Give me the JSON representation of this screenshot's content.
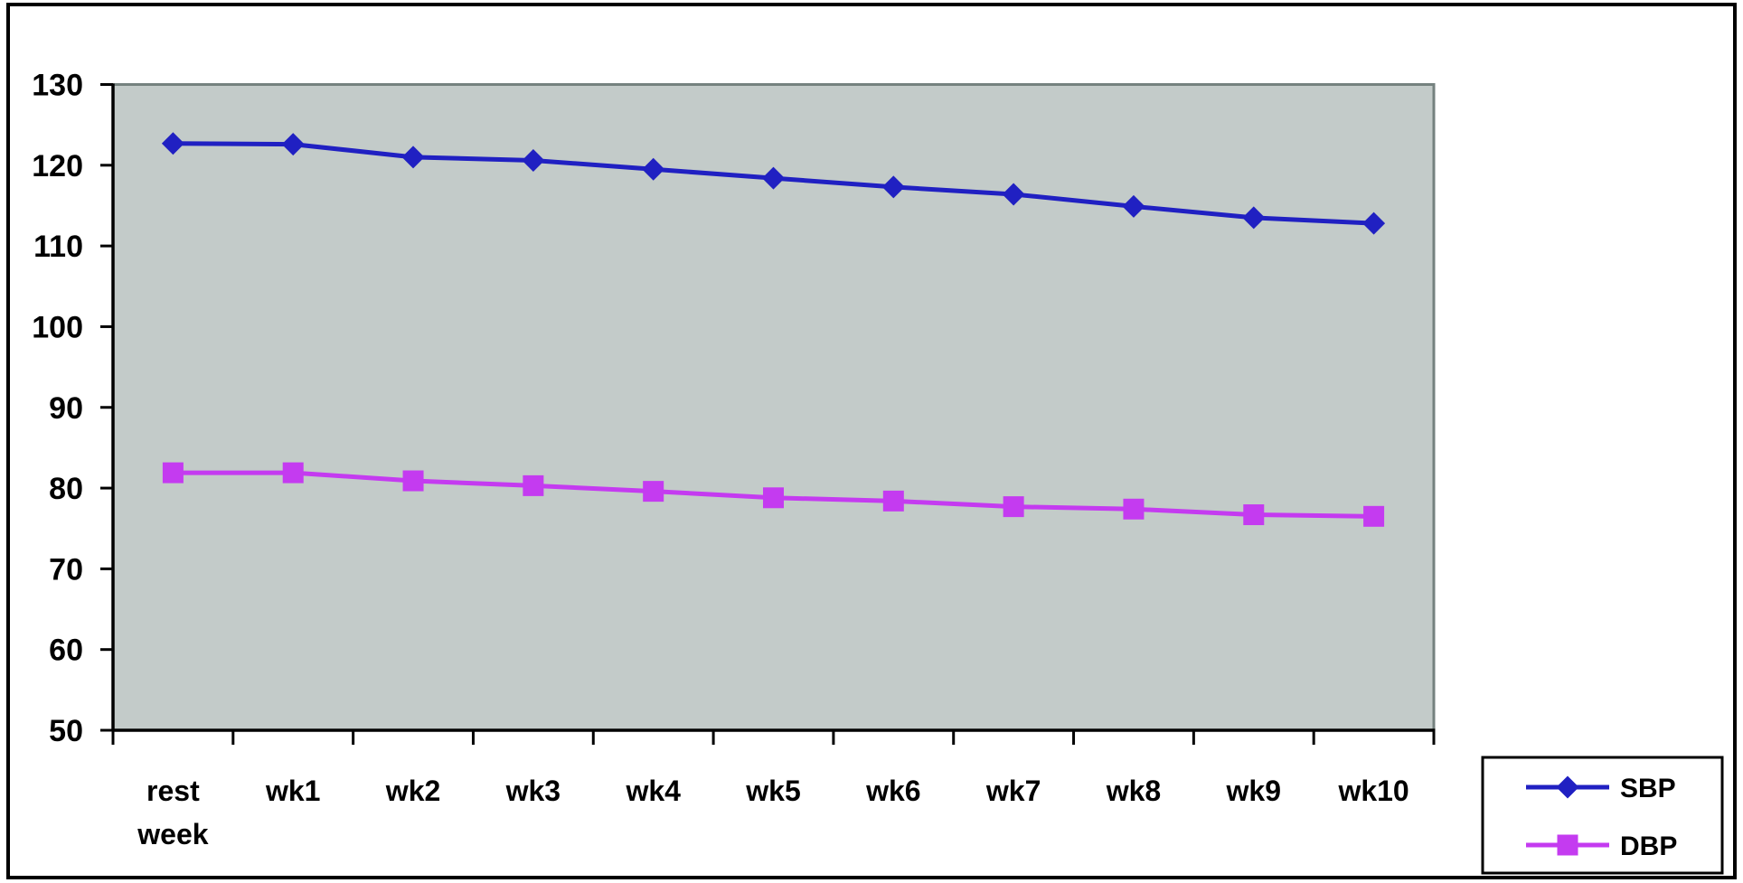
{
  "figure": {
    "background": "#ffffff",
    "border_color": "#000000"
  },
  "chart_data": {
    "type": "line",
    "title": "",
    "xlabel": "",
    "ylabel": "",
    "categories": [
      "rest week",
      "wk1",
      "wk2",
      "wk3",
      "wk4",
      "wk5",
      "wk6",
      "wk7",
      "wk8",
      "wk9",
      "wk10"
    ],
    "series": [
      {
        "name": "SBP",
        "color": "#2020c2",
        "marker": "diamond",
        "values": [
          122.7,
          122.6,
          121.0,
          120.6,
          119.5,
          118.4,
          117.3,
          116.4,
          114.9,
          113.5,
          112.8
        ]
      },
      {
        "name": "DBP",
        "color": "#c43bf0",
        "marker": "square",
        "values": [
          81.9,
          81.9,
          80.9,
          80.3,
          79.6,
          78.8,
          78.4,
          77.7,
          77.4,
          76.7,
          76.5
        ]
      }
    ],
    "ylim": [
      50,
      130
    ],
    "yticks": [
      50,
      60,
      70,
      80,
      90,
      100,
      110,
      120,
      130
    ],
    "grid": false,
    "plot_background": "#c3cbc9",
    "plot_border_color": "#75827f",
    "axis_color": "#000000",
    "legend": {
      "position": "bottom-right",
      "items": [
        "SBP",
        "DBP"
      ]
    }
  }
}
